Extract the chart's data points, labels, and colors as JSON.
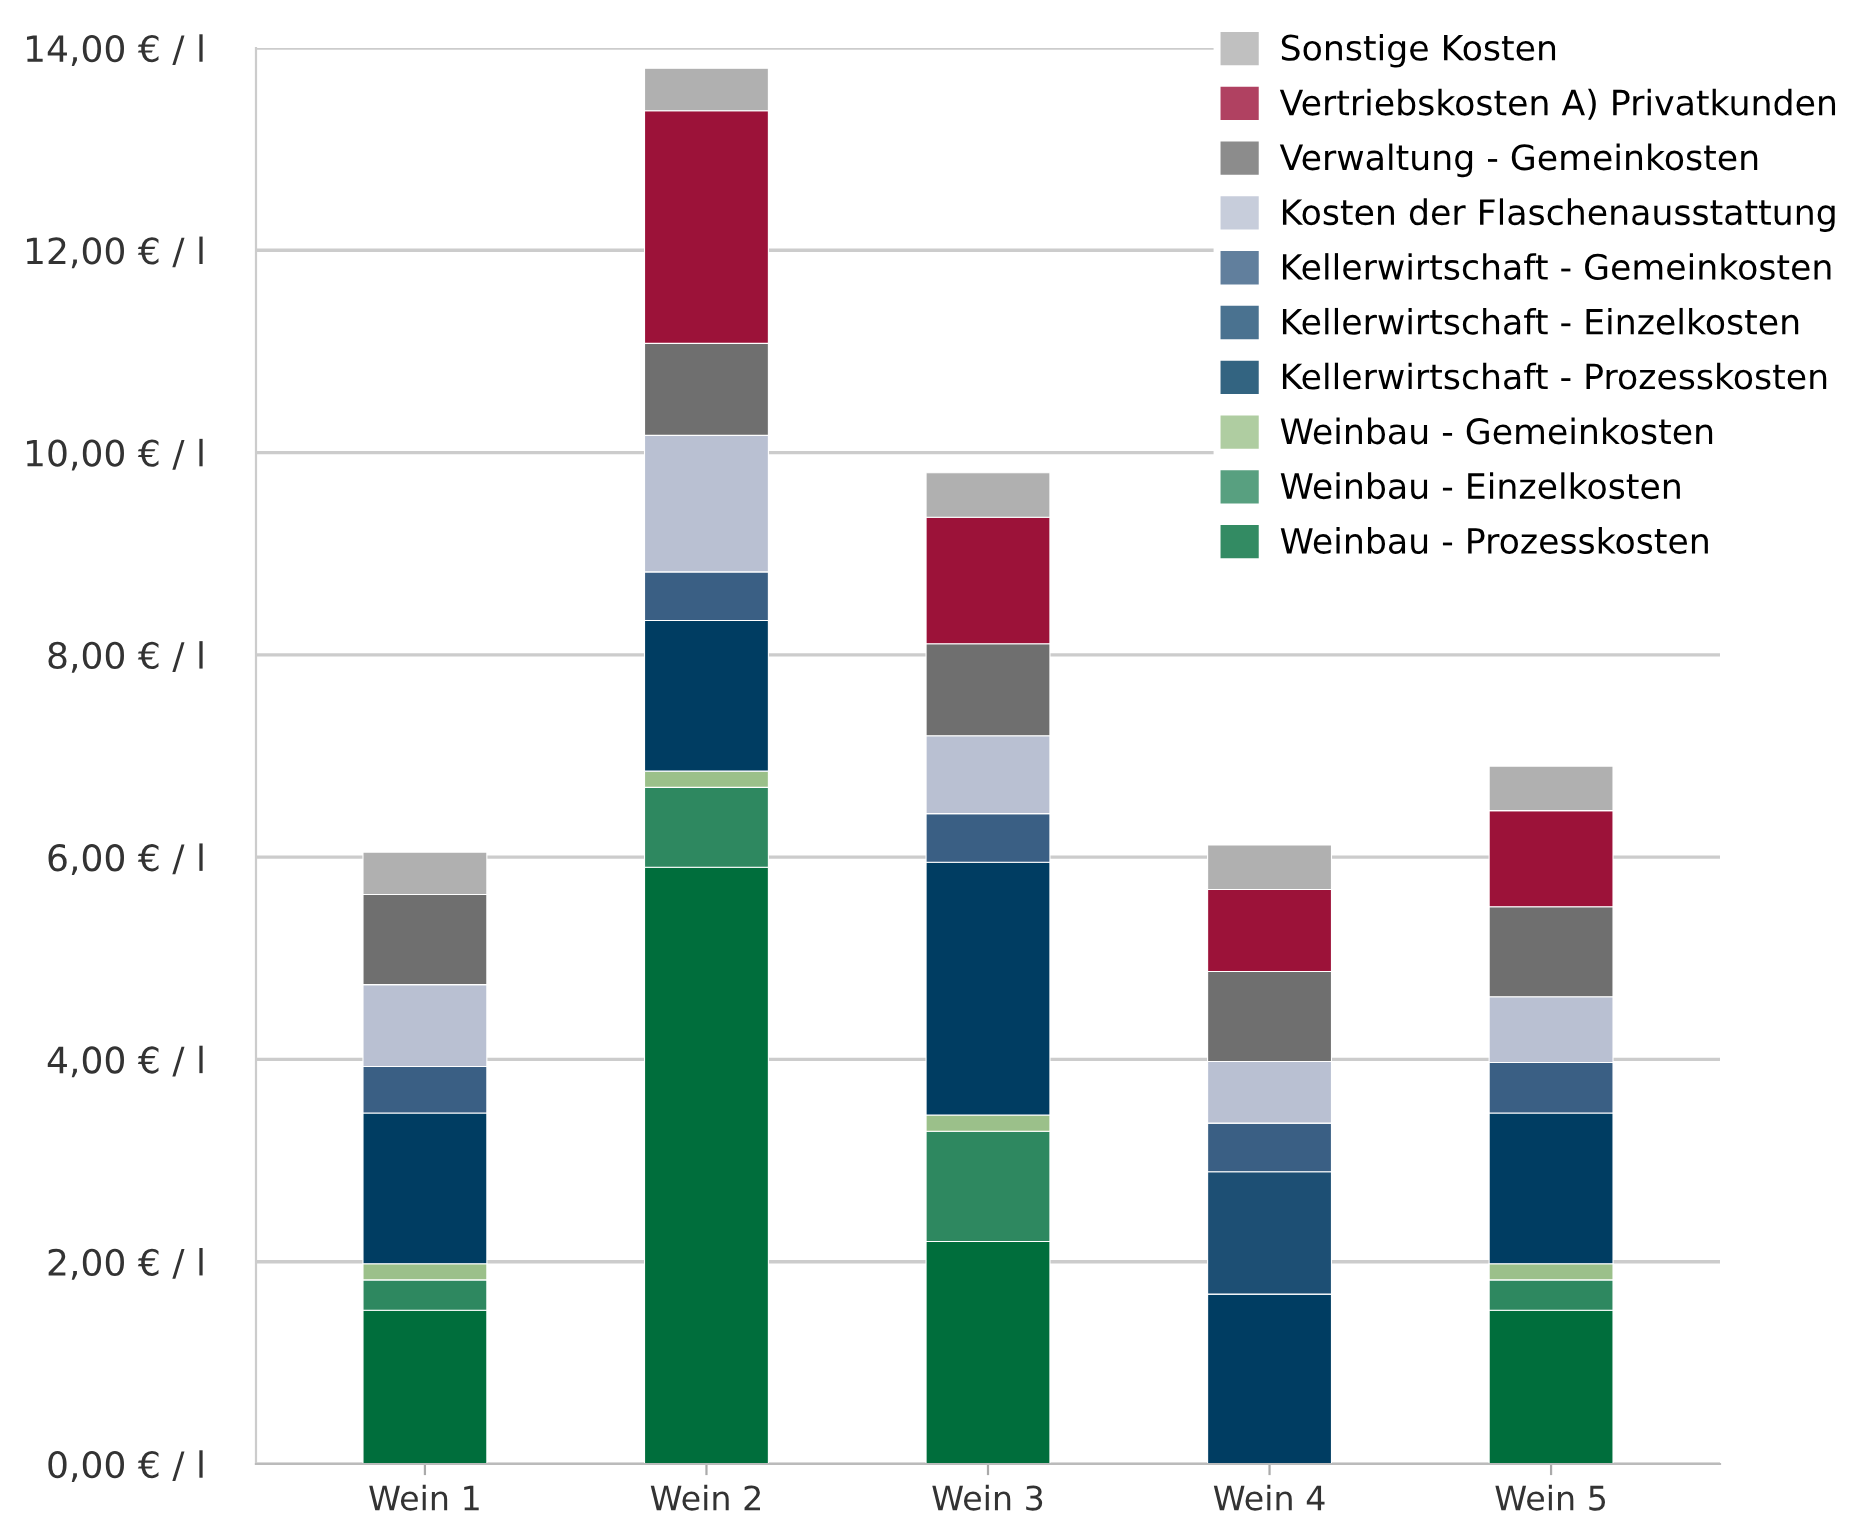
{
  "chart_data": {
    "type": "bar",
    "stacked": true,
    "categories": [
      "Wein 1",
      "Wein 2",
      "Wein 3",
      "Wein 4",
      "Wein 5"
    ],
    "series": [
      {
        "name": "Weinbau - Prozesskosten",
        "color": "#006e3c",
        "values": [
          1.52,
          5.9,
          2.2,
          null,
          1.52
        ]
      },
      {
        "name": "Weinbau - Einzelkosten",
        "color": "#2e8860",
        "values": [
          0.3,
          0.79,
          1.09,
          null,
          0.3
        ]
      },
      {
        "name": "Weinbau - Gemeinkosten",
        "color": "#9bc08a",
        "values": [
          0.16,
          0.16,
          0.16,
          null,
          0.16
        ]
      },
      {
        "name": "Kellerwirtschaft - Prozesskosten",
        "color": "#003d62",
        "values": [
          1.49,
          1.49,
          2.5,
          1.68,
          1.49
        ]
      },
      {
        "name": "Kellerwirtschaft - Einzelkosten",
        "color": "#1d4f74",
        "values": [
          null,
          null,
          null,
          1.21,
          null
        ]
      },
      {
        "name": "Kellerwirtschaft - Gemeinkosten",
        "color": "#3a5f84",
        "values": [
          0.46,
          0.48,
          0.48,
          0.48,
          0.5
        ]
      },
      {
        "name": "Kosten der Flaschenausstattung",
        "color": "#b9c0d2",
        "values": [
          0.81,
          1.35,
          0.77,
          0.61,
          0.65
        ]
      },
      {
        "name": "Verwaltung - Gemeinkosten",
        "color": "#6f6f6f",
        "values": [
          0.89,
          0.91,
          0.91,
          0.89,
          0.89
        ]
      },
      {
        "name": "Vertriebskosten A) Privatkunden",
        "color": "#9c1239",
        "values": [
          null,
          2.3,
          1.25,
          0.81,
          0.95
        ]
      },
      {
        "name": "Sonstige Kosten",
        "color": "#b0b0b0",
        "values": [
          0.42,
          0.42,
          0.44,
          0.44,
          0.44
        ]
      }
    ],
    "ylim": [
      0,
      14
    ],
    "yticks": [
      {
        "value": 0,
        "label": "0,00 € / l"
      },
      {
        "value": 2,
        "label": "2,00 € / l"
      },
      {
        "value": 4,
        "label": "4,00 € / l"
      },
      {
        "value": 6,
        "label": "6,00 € / l"
      },
      {
        "value": 8,
        "label": "8,00 € / l"
      },
      {
        "value": 10,
        "label": "10,00 € / l"
      },
      {
        "value": 12,
        "label": "12,00 € / l"
      },
      {
        "value": 14,
        "label": "14,00 € / l"
      }
    ],
    "grid": "y",
    "legend": "top right"
  }
}
